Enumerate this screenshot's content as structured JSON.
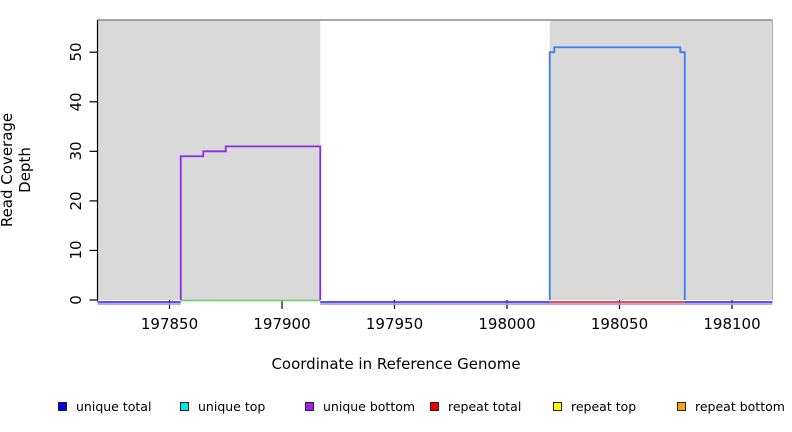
{
  "chart_data": {
    "type": "line",
    "title": "",
    "xlabel": "Coordinate in Reference Genome",
    "ylabel": "Read Coverage Depth",
    "xlim": [
      197818,
      198118
    ],
    "ylim": [
      0,
      56.5
    ],
    "x_ticks": [
      197850,
      197900,
      197950,
      198000,
      198050,
      198100
    ],
    "y_ticks": [
      0,
      10,
      20,
      30,
      40,
      50
    ],
    "grid": false,
    "shaded_regions": [
      {
        "name": "left-gray-region",
        "x0": 197818,
        "x1": 197917,
        "color": "#d9d9d9"
      },
      {
        "name": "right-gray-region",
        "x0": 198019,
        "x1": 198118,
        "color": "#d9d9d9"
      }
    ],
    "series": [
      {
        "name": "unique bottom coverage",
        "color": "#8a2be2",
        "points": [
          [
            197855,
            0
          ],
          [
            197855,
            29
          ],
          [
            197865,
            29
          ],
          [
            197865,
            30
          ],
          [
            197875,
            30
          ],
          [
            197875,
            31
          ],
          [
            197917,
            31
          ],
          [
            197917,
            0
          ]
        ]
      },
      {
        "name": "unique total coverage",
        "color": "#3b7cf6",
        "points": [
          [
            198019,
            0
          ],
          [
            198019,
            50
          ],
          [
            198021,
            50
          ],
          [
            198021,
            51
          ],
          [
            198077,
            51
          ],
          [
            198077,
            50
          ],
          [
            198079,
            50
          ],
          [
            198079,
            0
          ]
        ]
      }
    ],
    "baseline_segments": [
      {
        "name": "green baseline under purple region",
        "x0": 197855,
        "x1": 197917,
        "value": 0,
        "lane": 0,
        "color": "#7cc87c"
      },
      {
        "name": "blue baseline left",
        "x0": 197818,
        "x1": 197855,
        "value": 0,
        "lane": 1,
        "color": "#3d3df0"
      },
      {
        "name": "blue baseline middle",
        "x0": 197917,
        "x1": 198019,
        "value": 0,
        "lane": 1,
        "color": "#3d3df0"
      },
      {
        "name": "red baseline under blue region",
        "x0": 198019,
        "x1": 198079,
        "value": 0,
        "lane": 1,
        "color": "#e03a3a"
      },
      {
        "name": "blue baseline right",
        "x0": 198079,
        "x1": 198118,
        "value": 0,
        "lane": 1,
        "color": "#3d3df0"
      },
      {
        "name": "lavender baseline left",
        "x0": 197818,
        "x1": 197855,
        "value": 0,
        "lane": 2,
        "color": "#b79ae6"
      },
      {
        "name": "lavender baseline right",
        "x0": 197917,
        "x1": 198118,
        "value": 0,
        "lane": 2,
        "color": "#b79ae6"
      }
    ]
  },
  "legend": {
    "items": [
      {
        "label": "unique total",
        "color": "#0000ee"
      },
      {
        "label": "unique top",
        "color": "#00e5e5"
      },
      {
        "label": "unique bottom",
        "color": "#a020f0"
      },
      {
        "label": "repeat total",
        "color": "#ee0000"
      },
      {
        "label": "repeat top",
        "color": "#ffff00"
      },
      {
        "label": "repeat bottom",
        "color": "#ffa500"
      }
    ]
  }
}
